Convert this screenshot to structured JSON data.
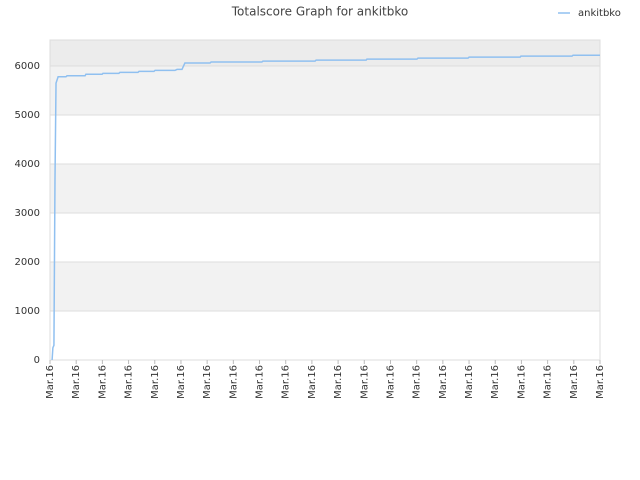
{
  "chart_data": {
    "type": "line",
    "title": "Totalscore Graph for ankitbko",
    "x": [
      0.08,
      0.11,
      0.15,
      0.19,
      0.23,
      0.31,
      0.61,
      0.65,
      1.34,
      1.37,
      1.99,
      2.02,
      2.63,
      2.67,
      3.36,
      3.4,
      3.97,
      4.01,
      4.77,
      4.85,
      5.04,
      5.15,
      6.11,
      6.15,
      8.09,
      8.13,
      10.12,
      10.16,
      12.07,
      12.1,
      14.01,
      14.05,
      15.96,
      16.0,
      17.95,
      17.98,
      19.93,
      19.97,
      21.0
    ],
    "series": [
      {
        "name": "ankitbko",
        "color": "#90c0f0",
        "values": [
          0,
          250,
          300,
          3650,
          5650,
          5780,
          5780,
          5800,
          5800,
          5830,
          5830,
          5850,
          5850,
          5870,
          5870,
          5890,
          5890,
          5910,
          5910,
          5930,
          5930,
          6060,
          6060,
          6080,
          6080,
          6100,
          6100,
          6120,
          6120,
          6140,
          6140,
          6160,
          6160,
          6180,
          6180,
          6200,
          6200,
          6220,
          6220
        ]
      }
    ],
    "xlim": [
      0,
      21
    ],
    "xticks": [
      {
        "value": 0,
        "label": "Mar.16"
      },
      {
        "value": 1,
        "label": "Mar.16"
      },
      {
        "value": 2,
        "label": "Mar.16"
      },
      {
        "value": 3,
        "label": "Mar.16"
      },
      {
        "value": 4,
        "label": "Mar.16"
      },
      {
        "value": 5,
        "label": "Mar.16"
      },
      {
        "value": 6,
        "label": "Mar.16"
      },
      {
        "value": 7,
        "label": "Mar.16"
      },
      {
        "value": 8,
        "label": "Mar.16"
      },
      {
        "value": 9,
        "label": "Mar.16"
      },
      {
        "value": 10,
        "label": "Mar.16"
      },
      {
        "value": 11,
        "label": "Mar.16"
      },
      {
        "value": 12,
        "label": "Mar.16"
      },
      {
        "value": 13,
        "label": "Mar.16"
      },
      {
        "value": 14,
        "label": "Mar.16"
      },
      {
        "value": 15,
        "label": "Mar.16"
      },
      {
        "value": 16,
        "label": "Mar.16"
      },
      {
        "value": 17,
        "label": "Mar.16"
      },
      {
        "value": 18,
        "label": "Mar.16"
      },
      {
        "value": 19,
        "label": "Mar.16"
      },
      {
        "value": 20,
        "label": "Mar.16"
      },
      {
        "value": 21,
        "label": "Mar.16"
      }
    ],
    "ylim": [
      0,
      6530
    ],
    "yticks": [
      0,
      1000,
      2000,
      3000,
      4000,
      5000,
      6000
    ],
    "grid": true,
    "legend": "top-right"
  }
}
